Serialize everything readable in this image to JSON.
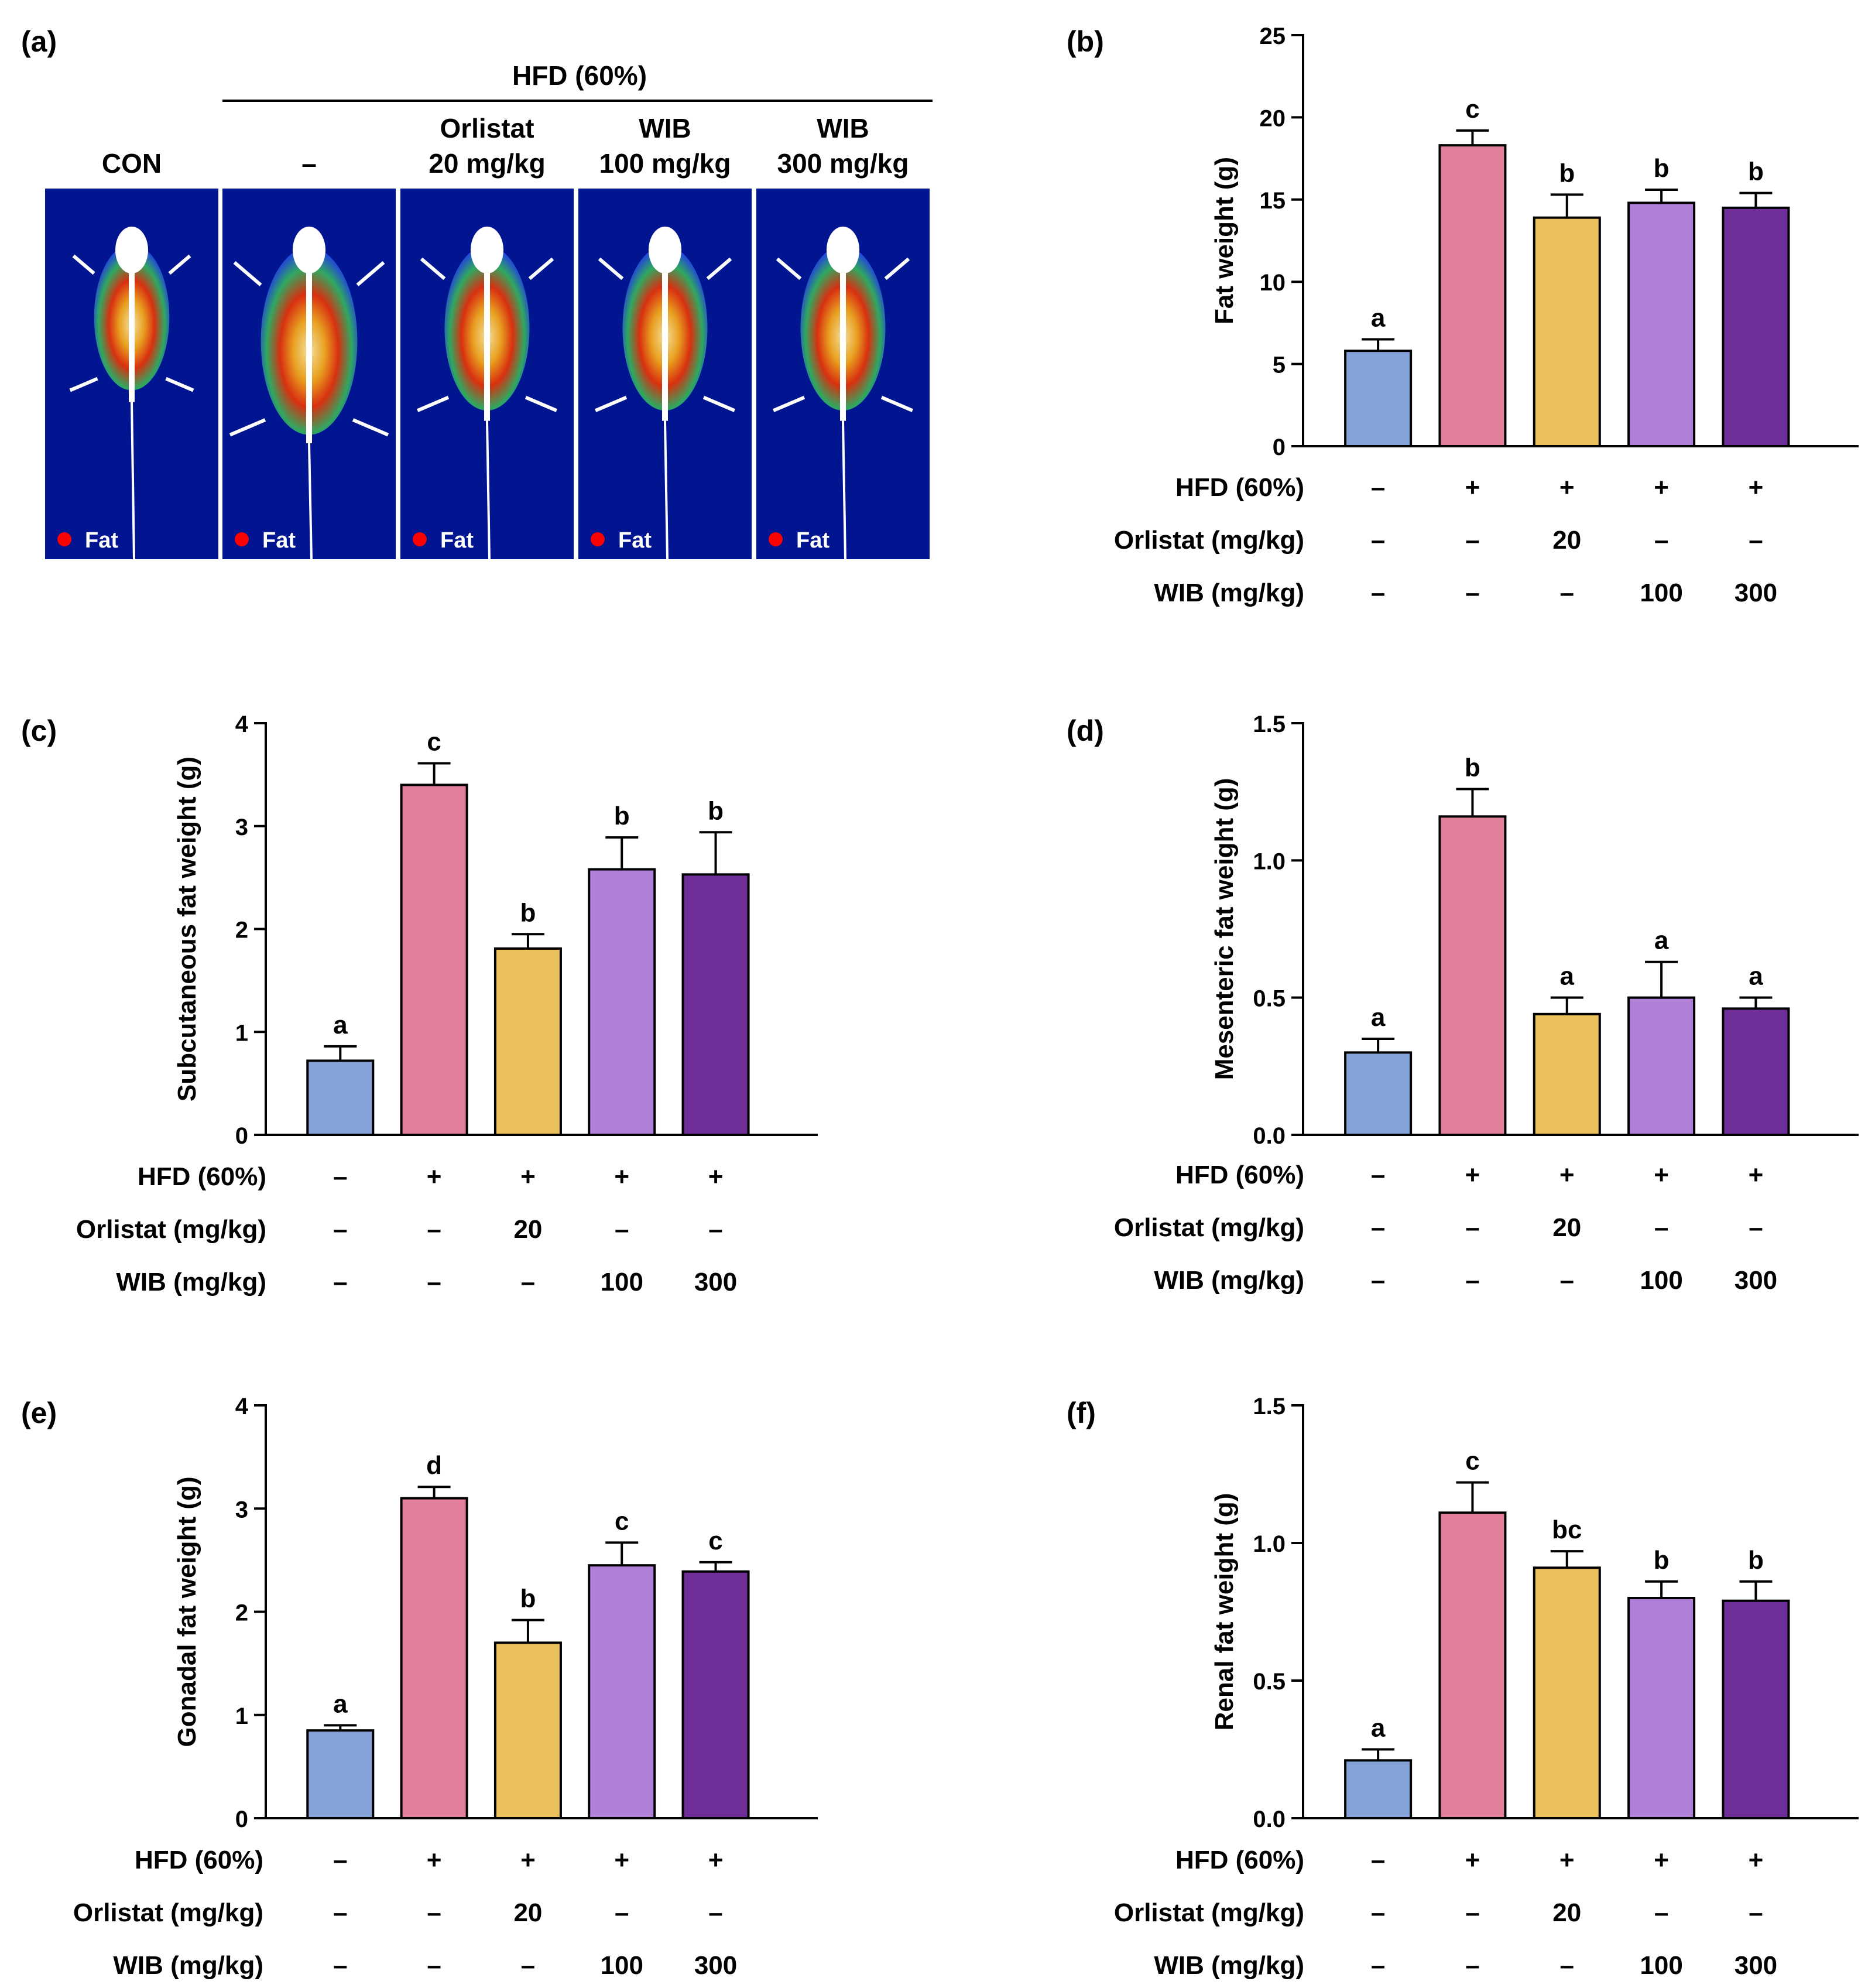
{
  "figure": {
    "colors": {
      "CON": "#86a3d9",
      "HFD": "#e27f9a",
      "Orlistat": "#eac15a",
      "WIB100": "#b07fd8",
      "WIB300": "#6f2e98",
      "scan_bg": "#00158f",
      "fat_dot": "#ff0000"
    },
    "bar_color_order": [
      "CON",
      "HFD",
      "Orlistat",
      "WIB100",
      "WIB300"
    ]
  },
  "panel_a": {
    "letter": "(a)",
    "group_header": "HFD (60%)",
    "columns": [
      {
        "label_lines": [
          "CON"
        ],
        "legend": "Fat"
      },
      {
        "label_lines": [
          "–"
        ],
        "legend": "Fat"
      },
      {
        "label_lines": [
          "Orlistat",
          "20 mg/kg"
        ],
        "legend": "Fat"
      },
      {
        "label_lines": [
          "WIB",
          "100 mg/kg"
        ],
        "legend": "Fat"
      },
      {
        "label_lines": [
          "WIB",
          "300 mg/kg"
        ],
        "legend": "Fat"
      }
    ]
  },
  "treatment_table": [
    {
      "label": "HFD (60%)",
      "values": [
        "–",
        "+",
        "+",
        "+",
        "+"
      ]
    },
    {
      "label": "Orlistat (mg/kg)",
      "values": [
        "–",
        "–",
        "20",
        "–",
        "–"
      ]
    },
    {
      "label": "WIB (mg/kg)",
      "values": [
        "–",
        "–",
        "–",
        "100",
        "300"
      ]
    }
  ],
  "chart_data": [
    {
      "id": "b",
      "letter": "(b)",
      "type": "bar",
      "ylabel": "Fat weight (g)",
      "ylim": [
        0,
        25
      ],
      "yticks": [
        0,
        5,
        10,
        15,
        20,
        25
      ],
      "ytick_labels": [
        "0",
        "5",
        "10",
        "15",
        "20",
        "25"
      ],
      "values": [
        5.8,
        18.3,
        13.9,
        14.8,
        14.5
      ],
      "errors": [
        0.7,
        0.9,
        1.4,
        0.8,
        0.9
      ],
      "letters": [
        "a",
        "c",
        "b",
        "b",
        "b"
      ]
    },
    {
      "id": "c",
      "letter": "(c)",
      "type": "bar",
      "ylabel": "Subcutaneous fat weight (g)",
      "ylim": [
        0,
        4
      ],
      "yticks": [
        0,
        1,
        2,
        3,
        4
      ],
      "ytick_labels": [
        "0",
        "1",
        "2",
        "3",
        "4"
      ],
      "values": [
        0.72,
        3.4,
        1.81,
        2.58,
        2.53
      ],
      "errors": [
        0.14,
        0.21,
        0.14,
        0.31,
        0.41
      ],
      "letters": [
        "a",
        "c",
        "b",
        "b",
        "b"
      ]
    },
    {
      "id": "d",
      "letter": "(d)",
      "type": "bar",
      "ylabel": "Mesenteric fat weight (g)",
      "ylim": [
        0,
        1.5
      ],
      "yticks": [
        0,
        0.5,
        1.0,
        1.5
      ],
      "ytick_labels": [
        "0.0",
        "0.5",
        "1.0",
        "1.5"
      ],
      "values": [
        0.3,
        1.16,
        0.44,
        0.5,
        0.46
      ],
      "errors": [
        0.05,
        0.1,
        0.06,
        0.13,
        0.04
      ],
      "letters": [
        "a",
        "b",
        "a",
        "a",
        "a"
      ]
    },
    {
      "id": "e",
      "letter": "(e)",
      "type": "bar",
      "ylabel": "Gonadal fat weight (g)",
      "ylim": [
        0,
        4
      ],
      "yticks": [
        0,
        1,
        2,
        3,
        4
      ],
      "ytick_labels": [
        "0",
        "1",
        "2",
        "3",
        "4"
      ],
      "values": [
        0.85,
        3.1,
        1.7,
        2.45,
        2.39
      ],
      "errors": [
        0.05,
        0.11,
        0.22,
        0.22,
        0.09
      ],
      "letters": [
        "a",
        "d",
        "b",
        "c",
        "c"
      ]
    },
    {
      "id": "f",
      "letter": "(f)",
      "type": "bar",
      "ylabel": "Renal fat weight (g)",
      "ylim": [
        0,
        1.5
      ],
      "yticks": [
        0,
        0.5,
        1.0,
        1.5
      ],
      "ytick_labels": [
        "0.0",
        "0.5",
        "1.0",
        "1.5"
      ],
      "values": [
        0.21,
        1.11,
        0.91,
        0.8,
        0.79
      ],
      "errors": [
        0.04,
        0.11,
        0.06,
        0.06,
        0.07
      ],
      "letters": [
        "a",
        "c",
        "bc",
        "b",
        "b"
      ]
    }
  ]
}
